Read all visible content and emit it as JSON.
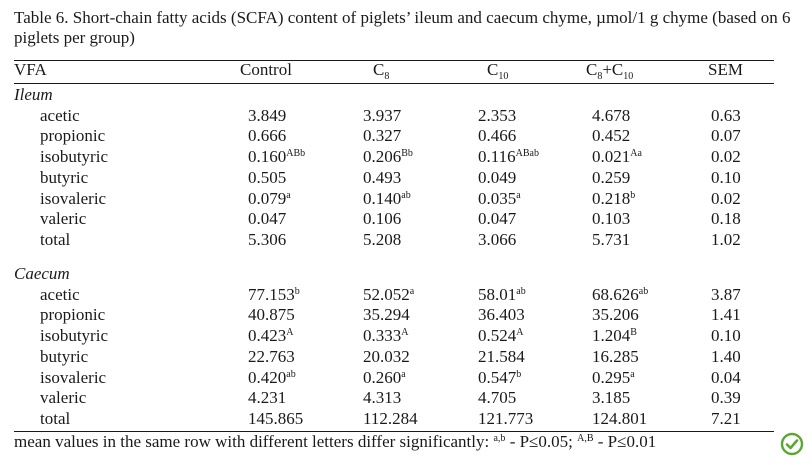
{
  "caption": "Table 6. Short-chain fatty acids (SCFA) content of piglets’ ileum and caecum chyme, µmol/1 g chyme (based on 6 piglets per group)",
  "header": {
    "vfa": "VFA",
    "control": "Control",
    "c8": "C",
    "c8_sub": "8",
    "c10": "C",
    "c10_sub": "10",
    "c8c10_a": "C",
    "c8c10_a_sub": "8",
    "c8c10_b": "+C",
    "c8c10_b_sub": "10",
    "sem": "SEM"
  },
  "sections": [
    {
      "title": "Ileum",
      "rows": [
        {
          "name": "acetic",
          "cells": [
            [
              "3.849",
              ""
            ],
            [
              "3.937",
              ""
            ],
            [
              "2.353",
              ""
            ],
            [
              "4.678",
              ""
            ]
          ],
          "sem": "0.63"
        },
        {
          "name": "propionic",
          "cells": [
            [
              "0.666",
              ""
            ],
            [
              "0.327",
              ""
            ],
            [
              "0.466",
              ""
            ],
            [
              "0.452",
              ""
            ]
          ],
          "sem": "0.07"
        },
        {
          "name": "isobutyric",
          "cells": [
            [
              "0.160",
              "ABb"
            ],
            [
              "0.206",
              "Bb"
            ],
            [
              "0.116",
              "ABab"
            ],
            [
              "0.021",
              "Aa"
            ]
          ],
          "sem": "0.02"
        },
        {
          "name": "butyric",
          "cells": [
            [
              "0.505",
              ""
            ],
            [
              "0.493",
              ""
            ],
            [
              "0.049",
              ""
            ],
            [
              "0.259",
              ""
            ]
          ],
          "sem": "0.10"
        },
        {
          "name": "isovaleric",
          "cells": [
            [
              "0.079",
              "a"
            ],
            [
              "0.140",
              "ab"
            ],
            [
              "0.035",
              "a"
            ],
            [
              "0.218",
              "b"
            ]
          ],
          "sem": "0.02"
        },
        {
          "name": "valeric",
          "cells": [
            [
              "0.047",
              ""
            ],
            [
              "0.106",
              ""
            ],
            [
              "0.047",
              ""
            ],
            [
              "0.103",
              ""
            ]
          ],
          "sem": "0.18"
        },
        {
          "name": "total",
          "cells": [
            [
              "5.306",
              ""
            ],
            [
              "5.208",
              ""
            ],
            [
              "3.066",
              ""
            ],
            [
              "5.731",
              ""
            ]
          ],
          "sem": "1.02"
        }
      ]
    },
    {
      "title": "Caecum",
      "rows": [
        {
          "name": "acetic",
          "cells": [
            [
              "77.153",
              "b"
            ],
            [
              "52.052",
              "a"
            ],
            [
              "58.01",
              "ab"
            ],
            [
              "68.626",
              "ab"
            ]
          ],
          "sem": "3.87"
        },
        {
          "name": "propionic",
          "cells": [
            [
              "40.875",
              ""
            ],
            [
              "35.294",
              ""
            ],
            [
              "36.403",
              ""
            ],
            [
              "35.206",
              ""
            ]
          ],
          "sem": "1.41"
        },
        {
          "name": "isobutyric",
          "cells": [
            [
              "0.423",
              "A"
            ],
            [
              "0.333",
              "A"
            ],
            [
              "0.524",
              "A"
            ],
            [
              "1.204",
              "B"
            ]
          ],
          "sem": "0.10"
        },
        {
          "name": "butyric",
          "cells": [
            [
              "22.763",
              ""
            ],
            [
              "20.032",
              ""
            ],
            [
              "21.584",
              ""
            ],
            [
              "16.285",
              ""
            ]
          ],
          "sem": "1.40"
        },
        {
          "name": "isovaleric",
          "cells": [
            [
              "0.420",
              "ab"
            ],
            [
              "0.260",
              "a"
            ],
            [
              "0.547",
              "b"
            ],
            [
              "0.295",
              "a"
            ]
          ],
          "sem": "0.04"
        },
        {
          "name": "valeric",
          "cells": [
            [
              "4.231",
              ""
            ],
            [
              "4.313",
              ""
            ],
            [
              "4.705",
              ""
            ],
            [
              "3.185",
              ""
            ]
          ],
          "sem": "0.39"
        },
        {
          "name": "total",
          "cells": [
            [
              "145.865",
              ""
            ],
            [
              "112.284",
              ""
            ],
            [
              "121.773",
              ""
            ],
            [
              "124.801",
              ""
            ]
          ],
          "sem": "7.21"
        }
      ]
    }
  ],
  "footnote": {
    "text": "mean values in the same row with different letters differ significantly: ",
    "sup1": "a,b",
    "mid": " - P≤0.05; ",
    "sup2": "A,B",
    "end": " - P≤0.01"
  },
  "logo_icon": "green-circle-check-logo-icon",
  "colors": {
    "logo_green": "#5aa832"
  }
}
